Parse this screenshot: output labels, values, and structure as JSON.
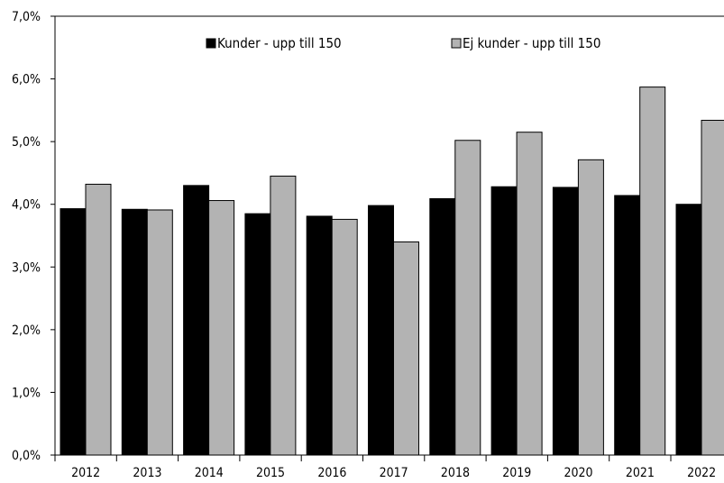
{
  "chart_data": {
    "type": "bar",
    "categories": [
      "2012",
      "2013",
      "2014",
      "2015",
      "2016",
      "2017",
      "2018",
      "2019",
      "2020",
      "2021",
      "2022"
    ],
    "series": [
      {
        "name": "Kunder - upp till 150",
        "color": "#000000",
        "values": [
          3.93,
          3.92,
          4.3,
          3.85,
          3.81,
          3.98,
          4.09,
          4.28,
          4.27,
          4.14,
          4.0
        ]
      },
      {
        "name": "Ej kunder - upp till 150",
        "color": "#b3b3b3",
        "values": [
          4.32,
          3.91,
          4.06,
          4.45,
          3.76,
          3.4,
          5.02,
          5.15,
          4.71,
          5.87,
          5.34
        ]
      }
    ],
    "y_ticks": [
      "0,0%",
      "1,0%",
      "2,0%",
      "3,0%",
      "4,0%",
      "5,0%",
      "6,0%",
      "7,0%"
    ],
    "ylim": [
      0,
      7
    ],
    "grid": false,
    "legend_position": "top-center"
  }
}
